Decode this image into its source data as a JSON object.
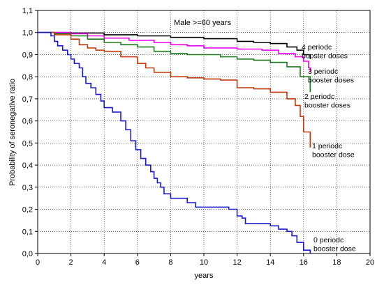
{
  "chart_data": {
    "type": "line",
    "title": "Male >=60 years",
    "xlabel": "years",
    "ylabel": "Probability of seronegative ratio",
    "xlim": [
      0,
      20
    ],
    "ylim": [
      0.0,
      1.1
    ],
    "xticks": [
      "0",
      "2",
      "4",
      "6",
      "8",
      "10",
      "12",
      "14",
      "16",
      "18",
      "20"
    ],
    "yticks": [
      "0,0",
      "0,1",
      "0,2",
      "0,3",
      "0,4",
      "0,5",
      "0,6",
      "0,7",
      "0,8",
      "0,9",
      "1,0",
      "1,1"
    ],
    "grid": true,
    "step": true,
    "series": [
      {
        "name": "4 periodc booster doses",
        "label_lines": [
          "4 periodc",
          "booster doses"
        ],
        "color": "#000000",
        "points": [
          [
            0,
            1.0
          ],
          [
            2,
            0.998
          ],
          [
            4,
            0.99
          ],
          [
            6,
            0.985
          ],
          [
            8,
            0.978
          ],
          [
            10,
            0.972
          ],
          [
            12,
            0.96
          ],
          [
            13,
            0.955
          ],
          [
            14,
            0.95
          ],
          [
            15,
            0.935
          ],
          [
            15.6,
            0.92
          ],
          [
            16.0,
            0.9
          ],
          [
            16.4,
            0.88
          ]
        ]
      },
      {
        "name": "3 periodc booster doses",
        "label_lines": [
          "3 periodc",
          "booster doses"
        ],
        "color": "#ee00ee",
        "points": [
          [
            0,
            1.0
          ],
          [
            2,
            0.995
          ],
          [
            3,
            0.985
          ],
          [
            4,
            0.975
          ],
          [
            5.5,
            0.965
          ],
          [
            7,
            0.955
          ],
          [
            8,
            0.945
          ],
          [
            9,
            0.94
          ],
          [
            10,
            0.93
          ],
          [
            12,
            0.925
          ],
          [
            13.5,
            0.92
          ],
          [
            14.5,
            0.905
          ],
          [
            15.5,
            0.89
          ],
          [
            16.0,
            0.87
          ],
          [
            16.3,
            0.84
          ],
          [
            16.4,
            0.82
          ]
        ]
      },
      {
        "name": "2 periodc booster doses",
        "label_lines": [
          "2 periodc",
          "booster doses"
        ],
        "color": "#1e7a1e",
        "points": [
          [
            0,
            1.0
          ],
          [
            1,
            0.995
          ],
          [
            2,
            0.985
          ],
          [
            3,
            0.97
          ],
          [
            4,
            0.955
          ],
          [
            5,
            0.945
          ],
          [
            6,
            0.935
          ],
          [
            7,
            0.915
          ],
          [
            8,
            0.905
          ],
          [
            9,
            0.9
          ],
          [
            10,
            0.9
          ],
          [
            11,
            0.89
          ],
          [
            12,
            0.88
          ],
          [
            13,
            0.875
          ],
          [
            14,
            0.865
          ],
          [
            15,
            0.845
          ],
          [
            15.8,
            0.8
          ],
          [
            16.4,
            0.73
          ]
        ]
      },
      {
        "name": "1 periodc booster dose",
        "label_lines": [
          "1 periodc",
          "booster dose"
        ],
        "color": "#c03a0a",
        "points": [
          [
            0,
            1.0
          ],
          [
            1,
            0.99
          ],
          [
            2,
            0.97
          ],
          [
            2.5,
            0.945
          ],
          [
            3,
            0.93
          ],
          [
            3.5,
            0.92
          ],
          [
            4,
            0.915
          ],
          [
            5,
            0.89
          ],
          [
            6,
            0.86
          ],
          [
            6.5,
            0.84
          ],
          [
            7,
            0.82
          ],
          [
            8,
            0.8
          ],
          [
            9,
            0.795
          ],
          [
            10,
            0.79
          ],
          [
            11,
            0.785
          ],
          [
            12,
            0.75
          ],
          [
            13,
            0.745
          ],
          [
            14,
            0.73
          ],
          [
            15,
            0.7
          ],
          [
            15.5,
            0.67
          ],
          [
            15.8,
            0.62
          ],
          [
            16.0,
            0.55
          ],
          [
            16.4,
            0.48
          ]
        ]
      },
      {
        "name": "0 periodc booster dose",
        "label_lines": [
          "0 periodc",
          "booster dose"
        ],
        "color": "#1a1acc",
        "points": [
          [
            0,
            1.0
          ],
          [
            0.8,
            0.985
          ],
          [
            1.0,
            0.96
          ],
          [
            1.2,
            0.94
          ],
          [
            1.5,
            0.92
          ],
          [
            1.8,
            0.9
          ],
          [
            2.0,
            0.88
          ],
          [
            2.2,
            0.86
          ],
          [
            2.5,
            0.84
          ],
          [
            2.7,
            0.8
          ],
          [
            2.9,
            0.77
          ],
          [
            3.2,
            0.75
          ],
          [
            3.5,
            0.72
          ],
          [
            3.8,
            0.69
          ],
          [
            4.0,
            0.66
          ],
          [
            4.5,
            0.64
          ],
          [
            5.0,
            0.6
          ],
          [
            5.3,
            0.56
          ],
          [
            5.6,
            0.51
          ],
          [
            5.9,
            0.47
          ],
          [
            6.2,
            0.43
          ],
          [
            6.5,
            0.4
          ],
          [
            6.8,
            0.37
          ],
          [
            7.0,
            0.34
          ],
          [
            7.2,
            0.32
          ],
          [
            7.4,
            0.3
          ],
          [
            7.6,
            0.27
          ],
          [
            8.0,
            0.25
          ],
          [
            8.5,
            0.25
          ],
          [
            9.0,
            0.23
          ],
          [
            9.5,
            0.21
          ],
          [
            10.5,
            0.21
          ],
          [
            11.5,
            0.2
          ],
          [
            12.0,
            0.17
          ],
          [
            12.3,
            0.16
          ],
          [
            12.5,
            0.135
          ],
          [
            14.0,
            0.125
          ],
          [
            14.5,
            0.11
          ],
          [
            15.0,
            0.1
          ],
          [
            15.3,
            0.08
          ],
          [
            15.6,
            0.05
          ],
          [
            16.0,
            0.015
          ],
          [
            16.4,
            0.0
          ]
        ]
      }
    ]
  }
}
